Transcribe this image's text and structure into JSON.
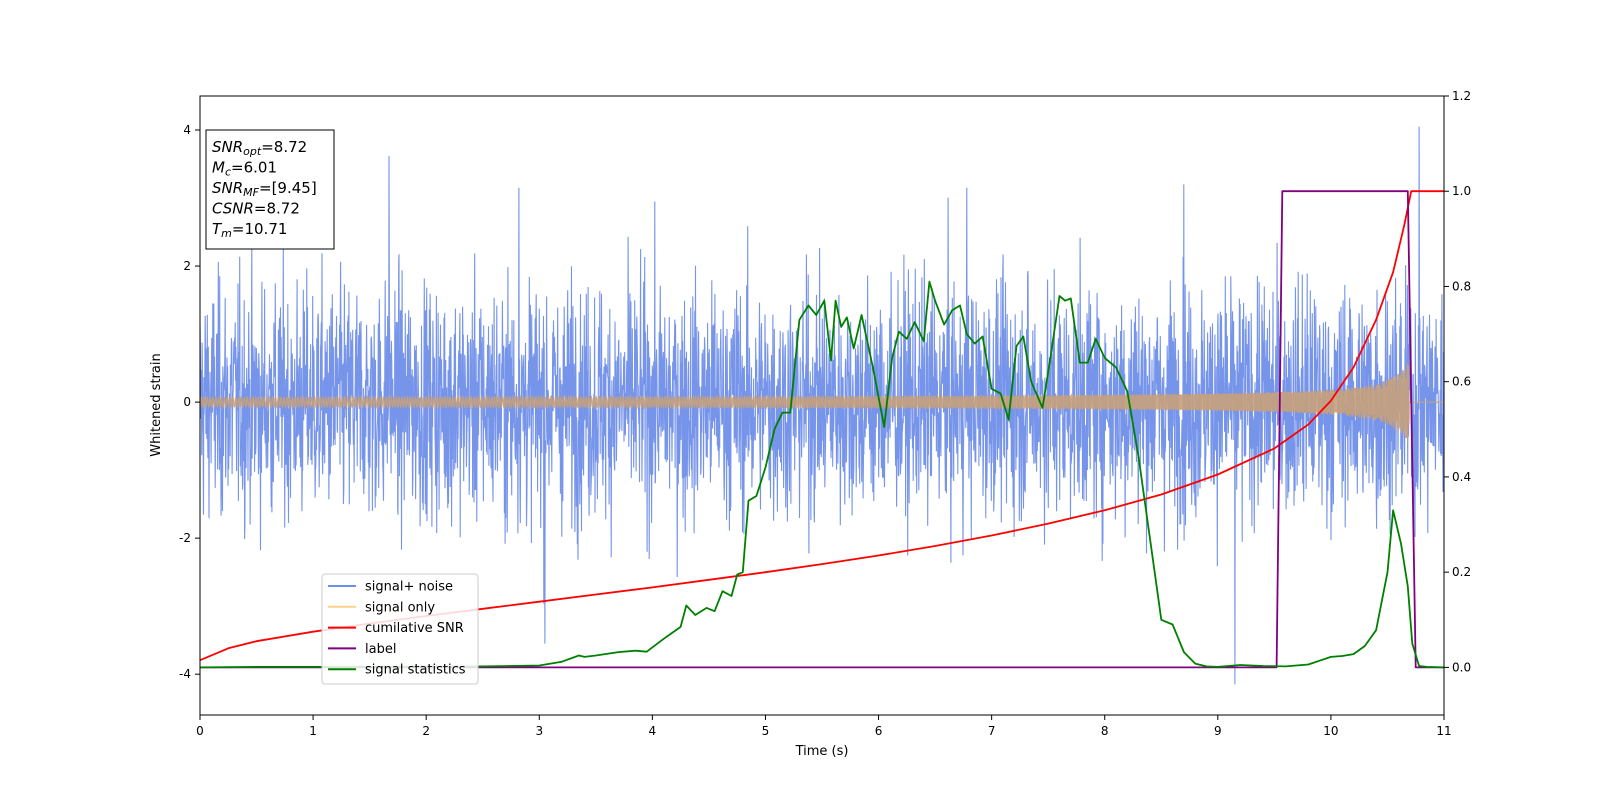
{
  "chart_data": {
    "type": "line",
    "xlabel": "Time (s)",
    "ylabel": "Whitened strain",
    "xlim": [
      0,
      11
    ],
    "ylim_left": [
      -4.6,
      4.5
    ],
    "ylim_right": [
      -0.1,
      1.2
    ],
    "xticks": [
      0,
      1,
      2,
      3,
      4,
      5,
      6,
      7,
      8,
      9,
      10,
      11
    ],
    "yticks_left": [
      -4,
      -2,
      0,
      2,
      4
    ],
    "yticks_right": [
      0.0,
      0.2,
      0.4,
      0.6,
      0.8,
      1.0,
      1.2
    ],
    "grid": false,
    "legend_position": "lower-left",
    "annotation": {
      "lines": [
        {
          "name": "SNR",
          "sub": "opt",
          "value": "=8.72"
        },
        {
          "name": "M",
          "sub": "c",
          "value": "=6.01"
        },
        {
          "name": "SNR",
          "sub": "MF",
          "value": "=[9.45]"
        },
        {
          "name": "CSNR",
          "sub": "",
          "value": "=8.72"
        },
        {
          "name": "T",
          "sub": "m",
          "value": "=10.71"
        }
      ]
    },
    "series": [
      {
        "name": "signal+ noise",
        "color": "#6f8ee8",
        "axis": "left",
        "kind": "noise",
        "base_amplitude": 1.25,
        "peak_events": [
          [
            1.67,
            3.62
          ],
          [
            3.05,
            -3.55
          ],
          [
            9.15,
            -4.15
          ],
          [
            10.78,
            4.05
          ],
          [
            6.78,
            3.15
          ],
          [
            8.7,
            3.2
          ],
          [
            2.82,
            3.15
          ]
        ]
      },
      {
        "name": "signal only",
        "color": "#c8a07a",
        "axis": "left",
        "kind": "chirp",
        "merger_time": 10.71,
        "amplitude_at_end": 0.65
      },
      {
        "name": "cumilative SNR",
        "color": "#ff0000",
        "axis": "right",
        "x": [
          0.0,
          0.25,
          0.5,
          1.0,
          1.5,
          2.0,
          2.5,
          3.0,
          3.5,
          4.0,
          4.5,
          5.0,
          5.5,
          6.0,
          6.5,
          7.0,
          7.5,
          8.0,
          8.5,
          9.0,
          9.5,
          9.8,
          10.0,
          10.2,
          10.4,
          10.55,
          10.65,
          10.71,
          11.0
        ],
        "y": [
          0.015,
          0.04,
          0.055,
          0.075,
          0.092,
          0.108,
          0.123,
          0.138,
          0.153,
          0.168,
          0.184,
          0.2,
          0.217,
          0.235,
          0.255,
          0.277,
          0.302,
          0.33,
          0.363,
          0.405,
          0.46,
          0.51,
          0.56,
          0.63,
          0.73,
          0.83,
          0.93,
          1.0,
          1.0
        ]
      },
      {
        "name": "label",
        "color": "#800080",
        "axis": "right",
        "x": [
          0.0,
          9.52,
          9.57,
          10.68,
          10.75,
          11.0
        ],
        "y": [
          0.0,
          0.0,
          1.0,
          1.0,
          0.0,
          0.0
        ]
      },
      {
        "name": "signal statistics",
        "color": "#008000",
        "axis": "right",
        "x": [
          0.0,
          0.5,
          1.0,
          1.5,
          2.0,
          2.5,
          3.0,
          3.2,
          3.35,
          3.4,
          3.5,
          3.7,
          3.85,
          3.95,
          4.1,
          4.25,
          4.3,
          4.38,
          4.48,
          4.55,
          4.62,
          4.7,
          4.75,
          4.8,
          4.85,
          4.92,
          5.0,
          5.08,
          5.15,
          5.22,
          5.3,
          5.38,
          5.45,
          5.52,
          5.58,
          5.62,
          5.67,
          5.72,
          5.78,
          5.85,
          5.95,
          6.05,
          6.12,
          6.18,
          6.25,
          6.32,
          6.4,
          6.45,
          6.5,
          6.58,
          6.65,
          6.72,
          6.78,
          6.85,
          6.92,
          7.0,
          7.08,
          7.15,
          7.22,
          7.28,
          7.35,
          7.45,
          7.52,
          7.6,
          7.65,
          7.7,
          7.78,
          7.85,
          7.92,
          8.0,
          8.1,
          8.2,
          8.3,
          8.4,
          8.5,
          8.6,
          8.7,
          8.8,
          8.9,
          9.0,
          9.2,
          9.4,
          9.6,
          9.8,
          9.9,
          10.0,
          10.1,
          10.2,
          10.3,
          10.4,
          10.5,
          10.55,
          10.62,
          10.68,
          10.72,
          10.78,
          10.85,
          11.0
        ],
        "y": [
          0.0,
          0.001,
          0.001,
          0.001,
          0.002,
          0.002,
          0.004,
          0.012,
          0.025,
          0.022,
          0.025,
          0.032,
          0.035,
          0.033,
          0.06,
          0.085,
          0.13,
          0.11,
          0.125,
          0.118,
          0.16,
          0.15,
          0.195,
          0.2,
          0.35,
          0.36,
          0.42,
          0.5,
          0.535,
          0.535,
          0.73,
          0.76,
          0.74,
          0.77,
          0.645,
          0.77,
          0.715,
          0.735,
          0.67,
          0.74,
          0.63,
          0.505,
          0.65,
          0.705,
          0.69,
          0.725,
          0.685,
          0.81,
          0.77,
          0.72,
          0.75,
          0.76,
          0.7,
          0.68,
          0.695,
          0.585,
          0.575,
          0.52,
          0.675,
          0.695,
          0.6,
          0.545,
          0.65,
          0.78,
          0.77,
          0.775,
          0.64,
          0.64,
          0.69,
          0.65,
          0.63,
          0.58,
          0.44,
          0.27,
          0.1,
          0.09,
          0.032,
          0.008,
          0.002,
          0.001,
          0.005,
          0.003,
          0.002,
          0.006,
          0.014,
          0.022,
          0.024,
          0.028,
          0.045,
          0.078,
          0.2,
          0.33,
          0.26,
          0.17,
          0.05,
          0.003,
          0.001,
          0.0
        ]
      }
    ]
  }
}
